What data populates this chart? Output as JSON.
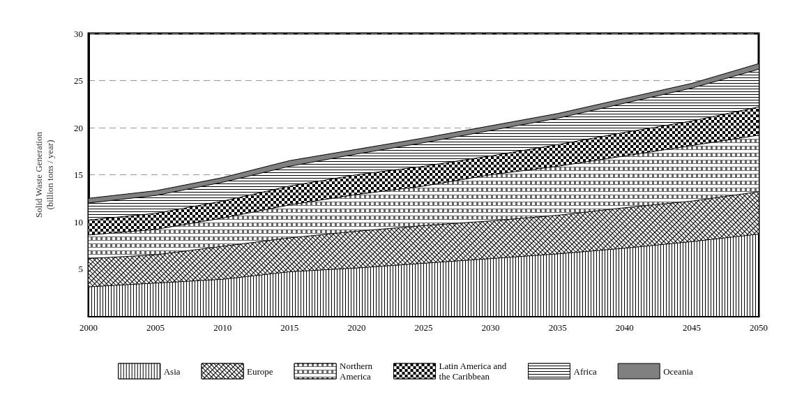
{
  "chart_data": {
    "type": "area",
    "stacked": true,
    "ylabel": "Solid Waste Generation\n(billion tons / year)",
    "categories": [
      "2000",
      "2005",
      "2010",
      "2015",
      "2020",
      "2025",
      "2030",
      "2035",
      "2040",
      "2045",
      "2050"
    ],
    "ylim": [
      0,
      30
    ],
    "yticks": [
      5,
      10,
      15,
      20,
      25,
      30
    ],
    "grid": "y",
    "legend": "bottom",
    "series": [
      {
        "name": "Asia",
        "color": "#000000",
        "values": [
          3.1,
          3.5,
          3.9,
          4.7,
          5.1,
          5.6,
          6.1,
          6.6,
          7.2,
          7.9,
          8.7
        ]
      },
      {
        "name": "Europe",
        "color": "#000000",
        "values": [
          3.0,
          3.0,
          3.5,
          3.6,
          3.9,
          4.0,
          4.0,
          4.1,
          4.3,
          4.3,
          4.5
        ]
      },
      {
        "name": "Northern\nAmerica",
        "color": "#666666",
        "values": [
          2.5,
          2.7,
          3.0,
          3.5,
          3.9,
          4.2,
          4.9,
          5.2,
          5.5,
          5.9,
          6.0
        ]
      },
      {
        "name": "Latin America and\nthe Caribbean",
        "color": "#000000",
        "values": [
          1.6,
          1.7,
          1.8,
          2.0,
          2.1,
          2.1,
          2.0,
          2.3,
          2.5,
          2.6,
          3.0
        ]
      },
      {
        "name": "Africa",
        "color": "#000000",
        "values": [
          1.8,
          1.9,
          2.0,
          2.1,
          2.2,
          2.5,
          2.7,
          2.8,
          3.1,
          3.5,
          4.0
        ]
      },
      {
        "name": "Oceania",
        "color": "#808080",
        "values": [
          0.5,
          0.5,
          0.5,
          0.6,
          0.5,
          0.5,
          0.5,
          0.5,
          0.5,
          0.5,
          0.6
        ]
      }
    ]
  }
}
